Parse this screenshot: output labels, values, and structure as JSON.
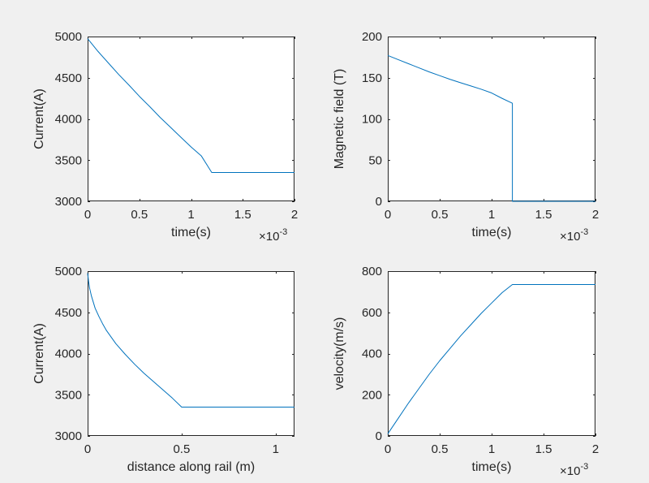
{
  "figure": {
    "background": "#f0f0f0",
    "axes_background": "#ffffff",
    "axes_color": "#262626",
    "line_color": "#0072bd"
  },
  "chart_data": [
    {
      "type": "line",
      "xlabel": "time(s)",
      "ylabel": "Current(A)",
      "xlim": [
        0,
        0.002
      ],
      "ylim": [
        3000,
        5000
      ],
      "x_ticks": [
        0,
        0.0005,
        0.001,
        0.0015,
        0.002
      ],
      "x_tick_labels": [
        "0",
        "0.5",
        "1",
        "1.5",
        "2"
      ],
      "y_ticks": [
        3000,
        3500,
        4000,
        4500,
        5000
      ],
      "y_tick_labels": [
        "3000",
        "3500",
        "4000",
        "4500",
        "5000"
      ],
      "x_exponent": "-3",
      "series": [
        {
          "x": [
            0,
            0.0001,
            0.0002,
            0.0003,
            0.0004,
            0.0005,
            0.0006,
            0.0007,
            0.0008,
            0.0009,
            0.001,
            0.0011,
            0.0012,
            0.0013,
            0.0015,
            0.0017,
            0.002
          ],
          "y": [
            4975,
            4820,
            4680,
            4540,
            4410,
            4275,
            4150,
            4020,
            3900,
            3780,
            3660,
            3550,
            3350,
            3350,
            3350,
            3350,
            3350
          ]
        }
      ]
    },
    {
      "type": "line",
      "xlabel": "time(s)",
      "ylabel": "Magnetic field (T)",
      "xlim": [
        0,
        0.002
      ],
      "ylim": [
        0,
        200
      ],
      "x_ticks": [
        0,
        0.0005,
        0.001,
        0.0015,
        0.002
      ],
      "x_tick_labels": [
        "0",
        "0.5",
        "1",
        "1.5",
        "2"
      ],
      "y_ticks": [
        0,
        50,
        100,
        150,
        200
      ],
      "y_tick_labels": [
        "0",
        "50",
        "100",
        "150",
        "200"
      ],
      "x_exponent": "-3",
      "series": [
        {
          "x": [
            0,
            0.0001,
            0.0002,
            0.0003,
            0.0004,
            0.0005,
            0.0006,
            0.0007,
            0.0008,
            0.0009,
            0.001,
            0.0011,
            0.0012,
            0.0012,
            0.0015,
            0.002
          ],
          "y": [
            177,
            172,
            167,
            162,
            157,
            152.5,
            148,
            144,
            140,
            136,
            131.5,
            125,
            119,
            0,
            0,
            0
          ]
        }
      ]
    },
    {
      "type": "line",
      "xlabel": "distance along rail (m)",
      "ylabel": "Current(A)",
      "xlim": [
        0,
        1.1
      ],
      "ylim": [
        3000,
        5000
      ],
      "x_ticks": [
        0,
        0.5,
        1
      ],
      "x_tick_labels": [
        "0",
        "0.5",
        "1"
      ],
      "y_ticks": [
        3000,
        3500,
        4000,
        4500,
        5000
      ],
      "y_tick_labels": [
        "3000",
        "3500",
        "4000",
        "4500",
        "5000"
      ],
      "series": [
        {
          "x": [
            0,
            0.005,
            0.01,
            0.02,
            0.04,
            0.06,
            0.08,
            0.1,
            0.15,
            0.2,
            0.25,
            0.3,
            0.35,
            0.4,
            0.45,
            0.5,
            0.6,
            0.8,
            1.1
          ],
          "y": [
            4975,
            4880,
            4800,
            4700,
            4550,
            4450,
            4360,
            4280,
            4120,
            3990,
            3870,
            3760,
            3660,
            3560,
            3460,
            3350,
            3350,
            3350,
            3350
          ]
        }
      ]
    },
    {
      "type": "line",
      "xlabel": "time(s)",
      "ylabel": "velocity(m/s)",
      "xlim": [
        0,
        0.002
      ],
      "ylim": [
        0,
        800
      ],
      "x_ticks": [
        0,
        0.0005,
        0.001,
        0.0015,
        0.002
      ],
      "x_tick_labels": [
        "0",
        "0.5",
        "1",
        "1.5",
        "2"
      ],
      "y_ticks": [
        0,
        200,
        400,
        600,
        800
      ],
      "y_tick_labels": [
        "0",
        "200",
        "400",
        "600",
        "800"
      ],
      "x_exponent": "-3",
      "series": [
        {
          "x": [
            0,
            0.0001,
            0.0002,
            0.0003,
            0.0004,
            0.0005,
            0.0006,
            0.0007,
            0.0008,
            0.0009,
            0.001,
            0.0011,
            0.0012,
            0.0015,
            0.002
          ],
          "y": [
            10,
            85,
            160,
            230,
            300,
            365,
            425,
            485,
            540,
            595,
            645,
            695,
            735,
            735,
            735
          ]
        }
      ]
    }
  ]
}
